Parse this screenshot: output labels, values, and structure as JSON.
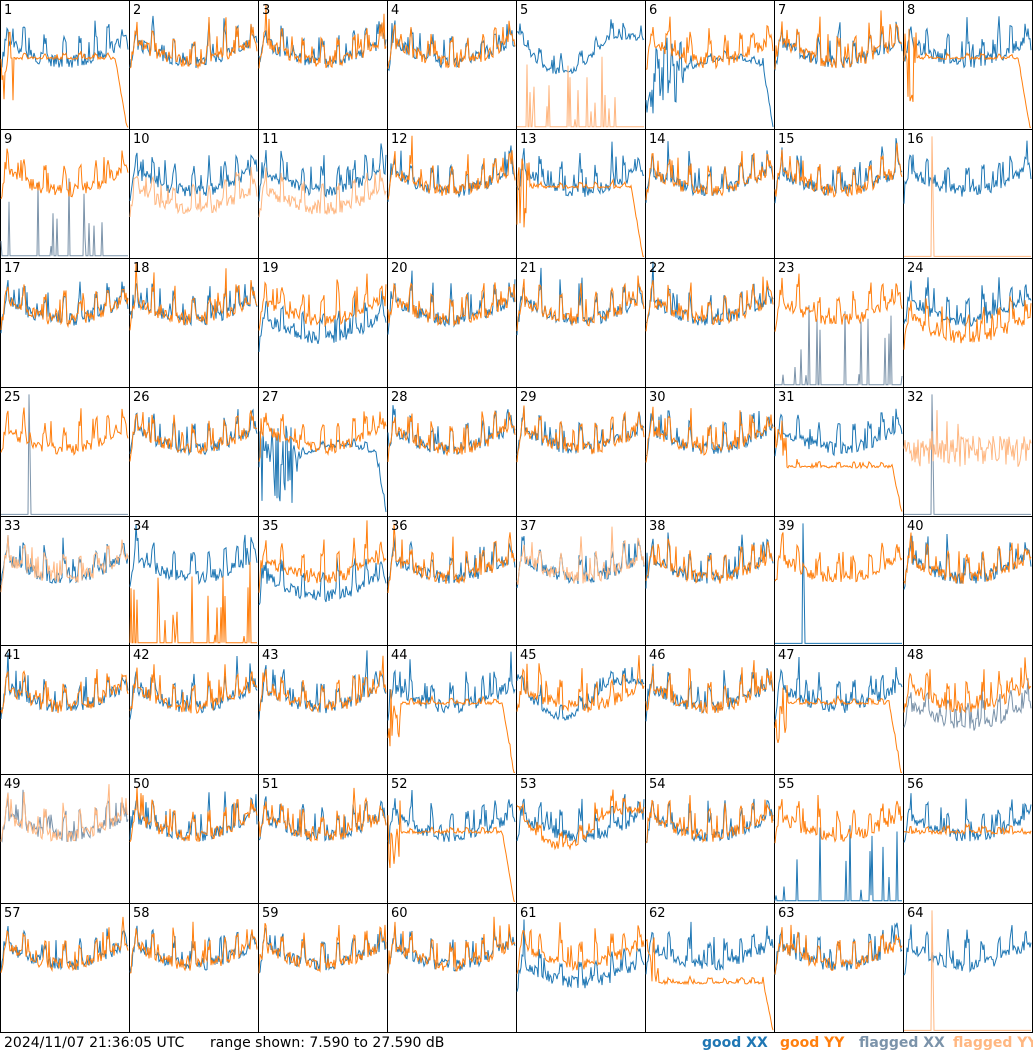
{
  "footer": {
    "timestamp": "2024/11/07 21:36:05 UTC",
    "range_text": "range shown: 7.590 to 27.590 dB"
  },
  "legend": {
    "good_xx": "good XX",
    "good_yy": "good YY",
    "flagged_xx": "flagged XX",
    "flagged_yy": "flagged YY"
  },
  "colors": {
    "good_xx": "#1f77b4",
    "good_yy": "#ff7f0e",
    "flagged_xx": "#7b93aa",
    "flagged_yy": "#ffb781"
  },
  "chart_data": {
    "type": "line",
    "layout": "8x8 small multiples",
    "ylim": [
      7.59,
      27.59
    ],
    "yunit": "dB",
    "panels": [
      {
        "label": "1",
        "xx": "good",
        "yy": "good",
        "xx_shape": "normal",
        "yy_shape": "rolloff"
      },
      {
        "label": "2",
        "xx": "good",
        "yy": "good",
        "xx_shape": "normal",
        "yy_shape": "normal"
      },
      {
        "label": "3",
        "xx": "good",
        "yy": "good",
        "xx_shape": "normal",
        "yy_shape": "normal"
      },
      {
        "label": "4",
        "xx": "good",
        "yy": "good",
        "xx_shape": "normal",
        "yy_shape": "normal"
      },
      {
        "label": "5",
        "xx": "good",
        "yy": "flagged",
        "xx_shape": "bowl",
        "yy_shape": "spikes"
      },
      {
        "label": "6",
        "xx": "good",
        "yy": "good",
        "xx_shape": "dead",
        "yy_shape": "normal"
      },
      {
        "label": "7",
        "xx": "good",
        "yy": "good",
        "xx_shape": "normal",
        "yy_shape": "normal"
      },
      {
        "label": "8",
        "xx": "good",
        "yy": "good",
        "xx_shape": "normal",
        "yy_shape": "rolloff"
      },
      {
        "label": "9",
        "xx": "flagged",
        "yy": "good",
        "xx_shape": "spikes",
        "yy_shape": "normal"
      },
      {
        "label": "10",
        "xx": "good",
        "yy": "flagged",
        "xx_shape": "normal",
        "yy_shape": "low"
      },
      {
        "label": "11",
        "xx": "good",
        "yy": "flagged",
        "xx_shape": "normal",
        "yy_shape": "low"
      },
      {
        "label": "12",
        "xx": "good",
        "yy": "good",
        "xx_shape": "normal",
        "yy_shape": "normal"
      },
      {
        "label": "13",
        "xx": "good",
        "yy": "good",
        "xx_shape": "normal",
        "yy_shape": "rolloff"
      },
      {
        "label": "14",
        "xx": "good",
        "yy": "good",
        "xx_shape": "normal",
        "yy_shape": "normal"
      },
      {
        "label": "15",
        "xx": "good",
        "yy": "good",
        "xx_shape": "normal",
        "yy_shape": "normal"
      },
      {
        "label": "16",
        "xx": "good",
        "yy": "flagged",
        "xx_shape": "normal",
        "yy_shape": "spike"
      },
      {
        "label": "17",
        "xx": "good",
        "yy": "good",
        "xx_shape": "normal",
        "yy_shape": "normal"
      },
      {
        "label": "18",
        "xx": "good",
        "yy": "good",
        "xx_shape": "normal",
        "yy_shape": "normal"
      },
      {
        "label": "19",
        "xx": "good",
        "yy": "good",
        "xx_shape": "low",
        "yy_shape": "normal"
      },
      {
        "label": "20",
        "xx": "good",
        "yy": "good",
        "xx_shape": "normal",
        "yy_shape": "normal"
      },
      {
        "label": "21",
        "xx": "good",
        "yy": "good",
        "xx_shape": "normal",
        "yy_shape": "normal"
      },
      {
        "label": "22",
        "xx": "good",
        "yy": "good",
        "xx_shape": "normal",
        "yy_shape": "normal"
      },
      {
        "label": "23",
        "xx": "flagged",
        "yy": "good",
        "xx_shape": "spikes",
        "yy_shape": "normal"
      },
      {
        "label": "24",
        "xx": "good",
        "yy": "good",
        "xx_shape": "normal",
        "yy_shape": "low"
      },
      {
        "label": "25",
        "xx": "flagged",
        "yy": "good",
        "xx_shape": "spike",
        "yy_shape": "normal"
      },
      {
        "label": "26",
        "xx": "good",
        "yy": "good",
        "xx_shape": "normal",
        "yy_shape": "normal"
      },
      {
        "label": "27",
        "xx": "good",
        "yy": "good",
        "xx_shape": "dead",
        "yy_shape": "normal"
      },
      {
        "label": "28",
        "xx": "good",
        "yy": "good",
        "xx_shape": "normal",
        "yy_shape": "normal"
      },
      {
        "label": "29",
        "xx": "good",
        "yy": "good",
        "xx_shape": "normal",
        "yy_shape": "normal"
      },
      {
        "label": "30",
        "xx": "good",
        "yy": "good",
        "xx_shape": "normal",
        "yy_shape": "normal"
      },
      {
        "label": "31",
        "xx": "good",
        "yy": "good",
        "xx_shape": "normal",
        "yy_shape": "low-rolloff"
      },
      {
        "label": "32",
        "xx": "flagged",
        "yy": "flagged",
        "xx_shape": "spike",
        "yy_shape": "noisy"
      },
      {
        "label": "33",
        "xx": "good",
        "yy": "flagged",
        "xx_shape": "normal",
        "yy_shape": "normal"
      },
      {
        "label": "34",
        "xx": "good",
        "yy": "good",
        "xx_shape": "normal",
        "yy_shape": "spikes"
      },
      {
        "label": "35",
        "xx": "good",
        "yy": "good",
        "xx_shape": "low",
        "yy_shape": "normal"
      },
      {
        "label": "36",
        "xx": "good",
        "yy": "good",
        "xx_shape": "normal",
        "yy_shape": "normal"
      },
      {
        "label": "37",
        "xx": "good",
        "yy": "flagged",
        "xx_shape": "normal",
        "yy_shape": "normal"
      },
      {
        "label": "38",
        "xx": "good",
        "yy": "good",
        "xx_shape": "normal",
        "yy_shape": "normal"
      },
      {
        "label": "39",
        "xx": "good",
        "yy": "good",
        "xx_shape": "spike",
        "yy_shape": "normal"
      },
      {
        "label": "40",
        "xx": "good",
        "yy": "good",
        "xx_shape": "normal",
        "yy_shape": "normal"
      },
      {
        "label": "41",
        "xx": "good",
        "yy": "good",
        "xx_shape": "normal",
        "yy_shape": "normal"
      },
      {
        "label": "42",
        "xx": "good",
        "yy": "good",
        "xx_shape": "normal",
        "yy_shape": "normal"
      },
      {
        "label": "43",
        "xx": "good",
        "yy": "good",
        "xx_shape": "normal",
        "yy_shape": "normal"
      },
      {
        "label": "44",
        "xx": "good",
        "yy": "good",
        "xx_shape": "normal",
        "yy_shape": "rolloff"
      },
      {
        "label": "45",
        "xx": "good",
        "yy": "good",
        "xx_shape": "bowl",
        "yy_shape": "normal"
      },
      {
        "label": "46",
        "xx": "good",
        "yy": "good",
        "xx_shape": "normal",
        "yy_shape": "normal"
      },
      {
        "label": "47",
        "xx": "good",
        "yy": "good",
        "xx_shape": "normal",
        "yy_shape": "rolloff"
      },
      {
        "label": "48",
        "xx": "flagged",
        "yy": "good",
        "xx_shape": "low",
        "yy_shape": "normal"
      },
      {
        "label": "49",
        "xx": "flagged",
        "yy": "flagged",
        "xx_shape": "normal",
        "yy_shape": "normal"
      },
      {
        "label": "50",
        "xx": "good",
        "yy": "good",
        "xx_shape": "normal",
        "yy_shape": "normal"
      },
      {
        "label": "51",
        "xx": "good",
        "yy": "good",
        "xx_shape": "normal",
        "yy_shape": "normal"
      },
      {
        "label": "52",
        "xx": "good",
        "yy": "good",
        "xx_shape": "normal",
        "yy_shape": "rolloff"
      },
      {
        "label": "53",
        "xx": "good",
        "yy": "good",
        "xx_shape": "normal",
        "yy_shape": "bowl"
      },
      {
        "label": "54",
        "xx": "good",
        "yy": "good",
        "xx_shape": "normal",
        "yy_shape": "normal"
      },
      {
        "label": "55",
        "xx": "good",
        "yy": "good",
        "xx_shape": "spikes",
        "yy_shape": "normal"
      },
      {
        "label": "56",
        "xx": "good",
        "yy": "good",
        "xx_shape": "normal",
        "yy_shape": "flat"
      },
      {
        "label": "57",
        "xx": "good",
        "yy": "good",
        "xx_shape": "normal",
        "yy_shape": "normal"
      },
      {
        "label": "58",
        "xx": "good",
        "yy": "good",
        "xx_shape": "normal",
        "yy_shape": "normal"
      },
      {
        "label": "59",
        "xx": "good",
        "yy": "good",
        "xx_shape": "normal",
        "yy_shape": "normal"
      },
      {
        "label": "60",
        "xx": "good",
        "yy": "good",
        "xx_shape": "normal",
        "yy_shape": "normal"
      },
      {
        "label": "61",
        "xx": "good",
        "yy": "good",
        "xx_shape": "low",
        "yy_shape": "normal"
      },
      {
        "label": "62",
        "xx": "good",
        "yy": "good",
        "xx_shape": "normal",
        "yy_shape": "low-rolloff"
      },
      {
        "label": "63",
        "xx": "good",
        "yy": "good",
        "xx_shape": "normal",
        "yy_shape": "normal"
      },
      {
        "label": "64",
        "xx": "good",
        "yy": "flagged",
        "xx_shape": "normal",
        "yy_shape": "spike"
      }
    ]
  }
}
